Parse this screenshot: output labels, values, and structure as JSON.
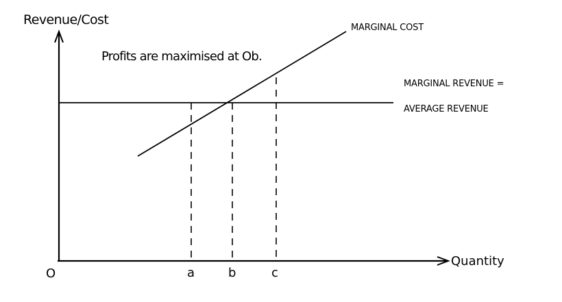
{
  "y_axis_label": "Revenue/Cost",
  "x_axis_label": "Quantity",
  "origin_label": "O",
  "annotation": "Profits are maximised at Ob.",
  "curves": {
    "marginal_cost": "MARGINAL COST",
    "marginal_revenue_line1": "MARGINAL REVENUE =",
    "marginal_revenue_line2": "AVERAGE REVENUE"
  },
  "quantity_markers": [
    "a",
    "b",
    "c"
  ]
}
